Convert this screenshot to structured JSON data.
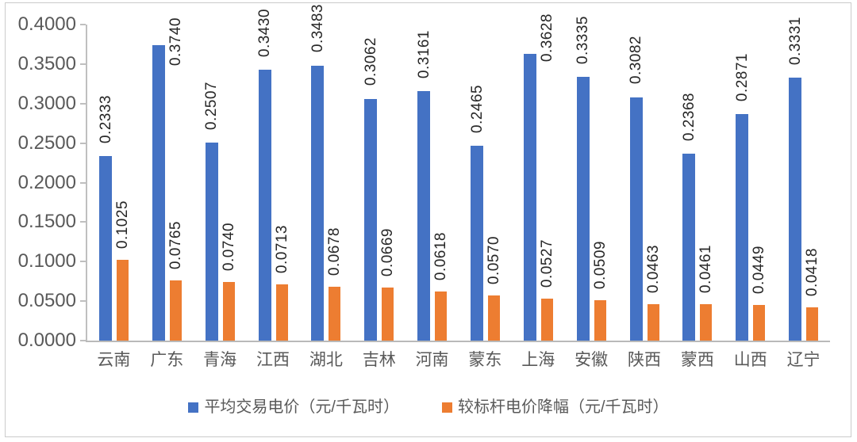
{
  "chart_data": {
    "type": "bar",
    "title": "",
    "xlabel": "",
    "ylabel": "",
    "categories": [
      "云南",
      "广东",
      "青海",
      "江西",
      "湖北",
      "吉林",
      "河南",
      "蒙东",
      "上海",
      "安徽",
      "陕西",
      "蒙西",
      "山西",
      "辽宁"
    ],
    "series": [
      {
        "name": "平均交易电价（元/千瓦时）",
        "color": "#4472C4",
        "values": [
          0.2333,
          0.374,
          0.2507,
          0.343,
          0.3483,
          0.3062,
          0.3161,
          0.2465,
          0.3628,
          0.3335,
          0.3082,
          0.2368,
          0.2871,
          0.3331
        ]
      },
      {
        "name": "较标杆电价降幅（元/千瓦时）",
        "color": "#ED7D31",
        "values": [
          0.1025,
          0.0765,
          0.074,
          0.0713,
          0.0678,
          0.0669,
          0.0618,
          0.057,
          0.0527,
          0.0509,
          0.0463,
          0.0461,
          0.0449,
          0.0418
        ]
      }
    ],
    "ylim": [
      0,
      0.4
    ],
    "y_ticks": [
      "0.4000",
      "0.3500",
      "0.3000",
      "0.2500",
      "0.2000",
      "0.1500",
      "0.1000",
      "0.0500",
      "0.0000"
    ],
    "grid": false,
    "legend_position": "bottom",
    "data_labels": "rotated-90-outside-end",
    "label_decimals": 4,
    "overflow_label_adjust": [
      {
        "index": 1,
        "dy": 26
      },
      {
        "index": 8,
        "dy": 10
      }
    ],
    "axis_color": "#BFBFBF",
    "tick_label_color": "#595959",
    "data_label_color": "#262626"
  }
}
